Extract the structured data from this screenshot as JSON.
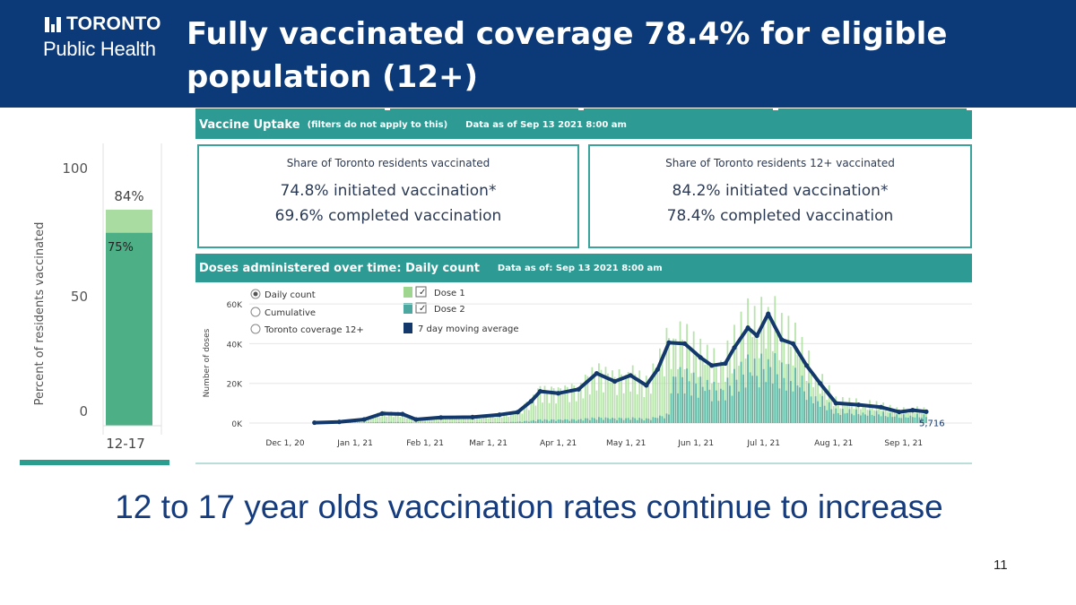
{
  "header": {
    "logo_top": "TORONTO",
    "logo_bottom": "Public Health",
    "title_line1": "Fully vaccinated coverage 78.4% for eligible",
    "title_line2": "population (12+)"
  },
  "dashboard": {
    "uptake_title": "Vaccine Uptake",
    "uptake_note": "(filters do not apply to this)",
    "uptake_date": "Data as of Sep 13 2021 8:00 am",
    "box_all": {
      "heading": "Share of Toronto residents vaccinated",
      "initiated": "74.8% initiated vaccination*",
      "completed": "69.6% completed vaccination"
    },
    "box_12plus": {
      "heading": "Share of Toronto residents 12+ vaccinated",
      "initiated": "84.2% initiated vaccination*",
      "completed": "78.4% completed vaccination"
    },
    "doses_title": "Doses administered over time: Daily count",
    "doses_date": "Data as of: Sep 13 2021 8:00 am"
  },
  "chart_data": [
    {
      "type": "bar",
      "categories": [
        "12-17"
      ],
      "series": [
        {
          "name": "initiated",
          "values": [
            84
          ],
          "color": "#a8dca0"
        },
        {
          "name": "completed",
          "values": [
            75
          ],
          "color": "#4caf86"
        }
      ],
      "data_labels": [
        "84%",
        "75%"
      ],
      "ylabel": "Percent of residents vaccinated",
      "yticks": [
        "100",
        "50",
        "0"
      ],
      "ylim": [
        0,
        100
      ]
    },
    {
      "type": "bar",
      "controls": [
        "Daily count",
        "Cumulative",
        "Toronto coverage 12+"
      ],
      "selected_control": "Daily count",
      "legend": [
        "Dose 1",
        "Dose 2",
        "7 day moving average"
      ],
      "ylabel": "Number of doses",
      "yticks": [
        "60K",
        "40K",
        "20K",
        "0K"
      ],
      "ylim": [
        0,
        65000
      ],
      "xlim": [
        "2020-12-01",
        "2021-09-13"
      ],
      "xticks": [
        {
          "date": "2020-12-01",
          "label": "Dec 1, 20"
        },
        {
          "date": "2021-01-01",
          "label": "Jan 1, 21"
        },
        {
          "date": "2021-02-01",
          "label": "Feb 1, 21"
        },
        {
          "date": "2021-03-01",
          "label": "Mar 1, 21"
        },
        {
          "date": "2021-04-01",
          "label": "Apr 1, 21"
        },
        {
          "date": "2021-05-01",
          "label": "May 1, 21"
        },
        {
          "date": "2021-06-01",
          "label": "Jun 1, 21"
        },
        {
          "date": "2021-07-01",
          "label": "Jul 1, 21"
        },
        {
          "date": "2021-08-01",
          "label": "Aug 1, 21"
        },
        {
          "date": "2021-09-01",
          "label": "Sep 1, 21"
        }
      ],
      "end_label": "5,716",
      "moving_average": [
        {
          "date": "2020-12-14",
          "value": 200
        },
        {
          "date": "2020-12-25",
          "value": 600
        },
        {
          "date": "2021-01-05",
          "value": 1800
        },
        {
          "date": "2021-01-13",
          "value": 4800
        },
        {
          "date": "2021-01-22",
          "value": 4500
        },
        {
          "date": "2021-01-28",
          "value": 1800
        },
        {
          "date": "2021-02-08",
          "value": 2800
        },
        {
          "date": "2021-02-22",
          "value": 3000
        },
        {
          "date": "2021-03-06",
          "value": 4200
        },
        {
          "date": "2021-03-14",
          "value": 5500
        },
        {
          "date": "2021-03-20",
          "value": 11000
        },
        {
          "date": "2021-03-24",
          "value": 16000
        },
        {
          "date": "2021-04-01",
          "value": 15000
        },
        {
          "date": "2021-04-10",
          "value": 17000
        },
        {
          "date": "2021-04-18",
          "value": 25000
        },
        {
          "date": "2021-04-26",
          "value": 21000
        },
        {
          "date": "2021-05-03",
          "value": 24000
        },
        {
          "date": "2021-05-10",
          "value": 19000
        },
        {
          "date": "2021-05-15",
          "value": 27000
        },
        {
          "date": "2021-05-20",
          "value": 40500
        },
        {
          "date": "2021-05-27",
          "value": 40000
        },
        {
          "date": "2021-06-03",
          "value": 33000
        },
        {
          "date": "2021-06-08",
          "value": 29000
        },
        {
          "date": "2021-06-14",
          "value": 30000
        },
        {
          "date": "2021-06-18",
          "value": 38000
        },
        {
          "date": "2021-06-24",
          "value": 48000
        },
        {
          "date": "2021-06-28",
          "value": 44000
        },
        {
          "date": "2021-07-03",
          "value": 55000
        },
        {
          "date": "2021-07-09",
          "value": 42000
        },
        {
          "date": "2021-07-14",
          "value": 40000
        },
        {
          "date": "2021-07-20",
          "value": 29000
        },
        {
          "date": "2021-07-26",
          "value": 20000
        },
        {
          "date": "2021-08-02",
          "value": 10000
        },
        {
          "date": "2021-08-12",
          "value": 9200
        },
        {
          "date": "2021-08-22",
          "value": 8000
        },
        {
          "date": "2021-08-30",
          "value": 5600
        },
        {
          "date": "2021-09-05",
          "value": 6500
        },
        {
          "date": "2021-09-11",
          "value": 5716
        }
      ]
    }
  ],
  "caption": "12 to 17 year olds vaccination rates continue to increase",
  "page_number": "11"
}
